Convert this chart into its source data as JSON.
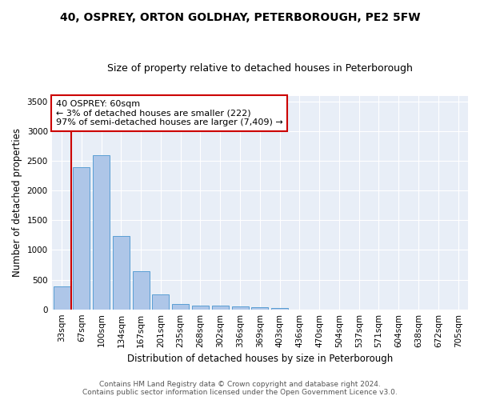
{
  "title_line1": "40, OSPREY, ORTON GOLDHAY, PETERBOROUGH, PE2 5FW",
  "title_line2": "Size of property relative to detached houses in Peterborough",
  "xlabel": "Distribution of detached houses by size in Peterborough",
  "ylabel": "Number of detached properties",
  "footer_line1": "Contains HM Land Registry data © Crown copyright and database right 2024.",
  "footer_line2": "Contains public sector information licensed under the Open Government Licence v3.0.",
  "categories": [
    "33sqm",
    "67sqm",
    "100sqm",
    "134sqm",
    "167sqm",
    "201sqm",
    "235sqm",
    "268sqm",
    "302sqm",
    "336sqm",
    "369sqm",
    "403sqm",
    "436sqm",
    "470sqm",
    "504sqm",
    "537sqm",
    "571sqm",
    "604sqm",
    "638sqm",
    "672sqm",
    "705sqm"
  ],
  "bar_values": [
    390,
    2400,
    2600,
    1240,
    640,
    255,
    90,
    65,
    60,
    55,
    30,
    25,
    0,
    0,
    0,
    0,
    0,
    0,
    0,
    0,
    0
  ],
  "bar_color": "#aec6e8",
  "bar_edge_color": "#5a9fd4",
  "background_color": "#e8eef7",
  "grid_color": "#d0d8e8",
  "annotation_line1": "40 OSPREY: 60sqm",
  "annotation_line2": "← 3% of detached houses are smaller (222)",
  "annotation_line3": "97% of semi-detached houses are larger (7,409) →",
  "vline_color": "#cc0000",
  "box_edge_color": "#cc0000",
  "ylim_max": 3600,
  "yticks": [
    0,
    500,
    1000,
    1500,
    2000,
    2500,
    3000,
    3500
  ],
  "title_fontsize": 10,
  "subtitle_fontsize": 9,
  "xlabel_fontsize": 8.5,
  "ylabel_fontsize": 8.5,
  "tick_fontsize": 7.5,
  "annotation_fontsize": 8,
  "footer_fontsize": 6.5
}
